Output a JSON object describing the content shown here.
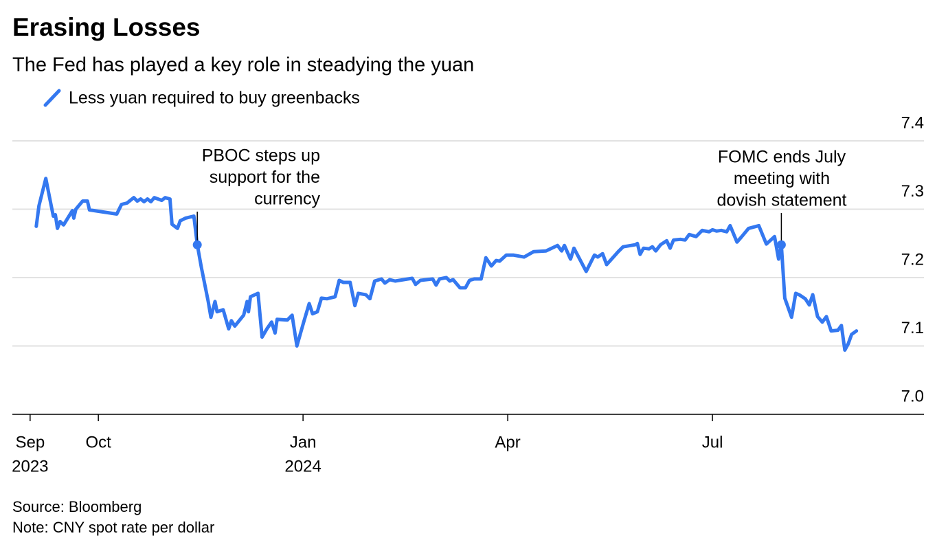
{
  "chart_data": {
    "type": "line",
    "title": "Erasing Losses",
    "subtitle": "The Fed has played a key role in steadying the yuan",
    "source": "Source: Bloomberg",
    "note": "Note: CNY spot rate per dollar",
    "xlim": [
      -0.26,
      13.1
    ],
    "xticks": [
      {
        "value": 0,
        "label": "Sep",
        "sublabel": "2023"
      },
      {
        "value": 1,
        "label": "Oct"
      },
      {
        "value": 4,
        "label": "Jan",
        "sublabel": "2024"
      },
      {
        "value": 7,
        "label": "Apr"
      },
      {
        "value": 10,
        "label": "Jul"
      }
    ],
    "ylim": [
      7.0,
      7.4
    ],
    "yticks": [
      {
        "value": 7.0,
        "label": "7.0"
      },
      7.1,
      7.2,
      7.3,
      7.4
    ],
    "grid": true,
    "x": [
      0.09,
      0.13,
      0.23,
      0.29,
      0.34,
      0.37,
      0.4,
      0.44,
      0.49,
      0.62,
      0.64,
      0.67,
      0.77,
      0.84,
      0.87,
      1.27,
      1.34,
      1.42,
      1.52,
      1.57,
      1.62,
      1.67,
      1.72,
      1.77,
      1.82,
      1.93,
      1.98,
      2.05,
      2.08,
      2.16,
      2.2,
      2.28,
      2.4,
      2.45,
      2.51,
      2.61,
      2.65,
      2.71,
      2.74,
      2.83,
      2.91,
      2.95,
      3.0,
      3.13,
      3.18,
      3.2,
      3.23,
      3.34,
      3.4,
      3.47,
      3.54,
      3.59,
      3.62,
      3.77,
      3.84,
      3.91,
      4.01,
      4.09,
      4.14,
      4.21,
      4.27,
      4.35,
      4.47,
      4.53,
      4.59,
      4.69,
      4.76,
      4.81,
      4.92,
      4.98,
      5.05,
      5.15,
      5.2,
      5.27,
      5.35,
      5.6,
      5.65,
      5.72,
      5.9,
      5.95,
      6.0,
      6.1,
      6.15,
      6.2,
      6.3,
      6.38,
      6.44,
      6.51,
      6.61,
      6.68,
      6.76,
      6.83,
      6.88,
      6.98,
      7.08,
      7.24,
      7.38,
      7.56,
      7.73,
      7.79,
      7.83,
      7.92,
      7.97,
      8.15,
      8.27,
      8.32,
      8.39,
      8.45,
      8.62,
      8.69,
      8.87,
      8.9,
      8.94,
      8.99,
      9.07,
      9.12,
      9.17,
      9.24,
      9.33,
      9.38,
      9.43,
      9.53,
      9.6,
      9.66,
      9.76,
      9.85,
      9.95,
      10.0,
      10.06,
      10.13,
      10.21,
      10.26,
      10.36,
      10.43,
      10.53,
      10.68,
      10.79,
      10.91,
      10.97,
      11.01,
      11.06,
      11.16,
      11.22,
      11.27,
      11.36,
      11.42,
      11.47,
      11.54,
      11.61,
      11.67,
      11.74,
      11.84,
      11.89,
      11.94,
      11.99,
      12.04,
      12.11
    ],
    "series": [
      {
        "name": "Less yuan required to buy greenbacks",
        "color": "#3478f0",
        "values": [
          7.275,
          7.305,
          7.345,
          7.315,
          7.29,
          7.292,
          7.272,
          7.282,
          7.277,
          7.298,
          7.287,
          7.3,
          7.312,
          7.312,
          7.299,
          7.293,
          7.307,
          7.309,
          7.317,
          7.312,
          7.315,
          7.311,
          7.315,
          7.311,
          7.317,
          7.313,
          7.317,
          7.315,
          7.278,
          7.272,
          7.283,
          7.287,
          7.29,
          7.248,
          7.215,
          7.165,
          7.142,
          7.165,
          7.15,
          7.153,
          7.125,
          7.137,
          7.129,
          7.145,
          7.165,
          7.15,
          7.172,
          7.177,
          7.113,
          7.125,
          7.135,
          7.119,
          7.139,
          7.138,
          7.145,
          7.1,
          7.135,
          7.162,
          7.147,
          7.15,
          7.17,
          7.169,
          7.172,
          7.196,
          7.193,
          7.193,
          7.159,
          7.177,
          7.175,
          7.169,
          7.195,
          7.198,
          7.192,
          7.197,
          7.195,
          7.199,
          7.19,
          7.196,
          7.198,
          7.189,
          7.198,
          7.2,
          7.195,
          7.197,
          7.185,
          7.185,
          7.196,
          7.198,
          7.198,
          7.229,
          7.217,
          7.225,
          7.224,
          7.233,
          7.233,
          7.23,
          7.238,
          7.239,
          7.247,
          7.239,
          7.247,
          7.227,
          7.243,
          7.209,
          7.233,
          7.23,
          7.235,
          7.219,
          7.238,
          7.245,
          7.248,
          7.25,
          7.234,
          7.243,
          7.242,
          7.245,
          7.239,
          7.248,
          7.254,
          7.243,
          7.255,
          7.256,
          7.255,
          7.263,
          7.26,
          7.269,
          7.267,
          7.27,
          7.268,
          7.269,
          7.267,
          7.276,
          7.252,
          7.26,
          7.272,
          7.276,
          7.249,
          7.26,
          7.227,
          7.248,
          7.17,
          7.142,
          7.177,
          7.175,
          7.169,
          7.16,
          7.175,
          7.143,
          7.135,
          7.143,
          7.122,
          7.123,
          7.13,
          7.094,
          7.103,
          7.117,
          7.122
        ]
      }
    ],
    "annotations": [
      {
        "lines": [
          "PBOC steps up",
          "support for the",
          "currency"
        ],
        "x": 2.45,
        "y": 7.248
      },
      {
        "lines": [
          "FOMC ends July",
          "meeting with",
          "dovish statement"
        ],
        "x": 11.01,
        "y": 7.248
      }
    ]
  }
}
